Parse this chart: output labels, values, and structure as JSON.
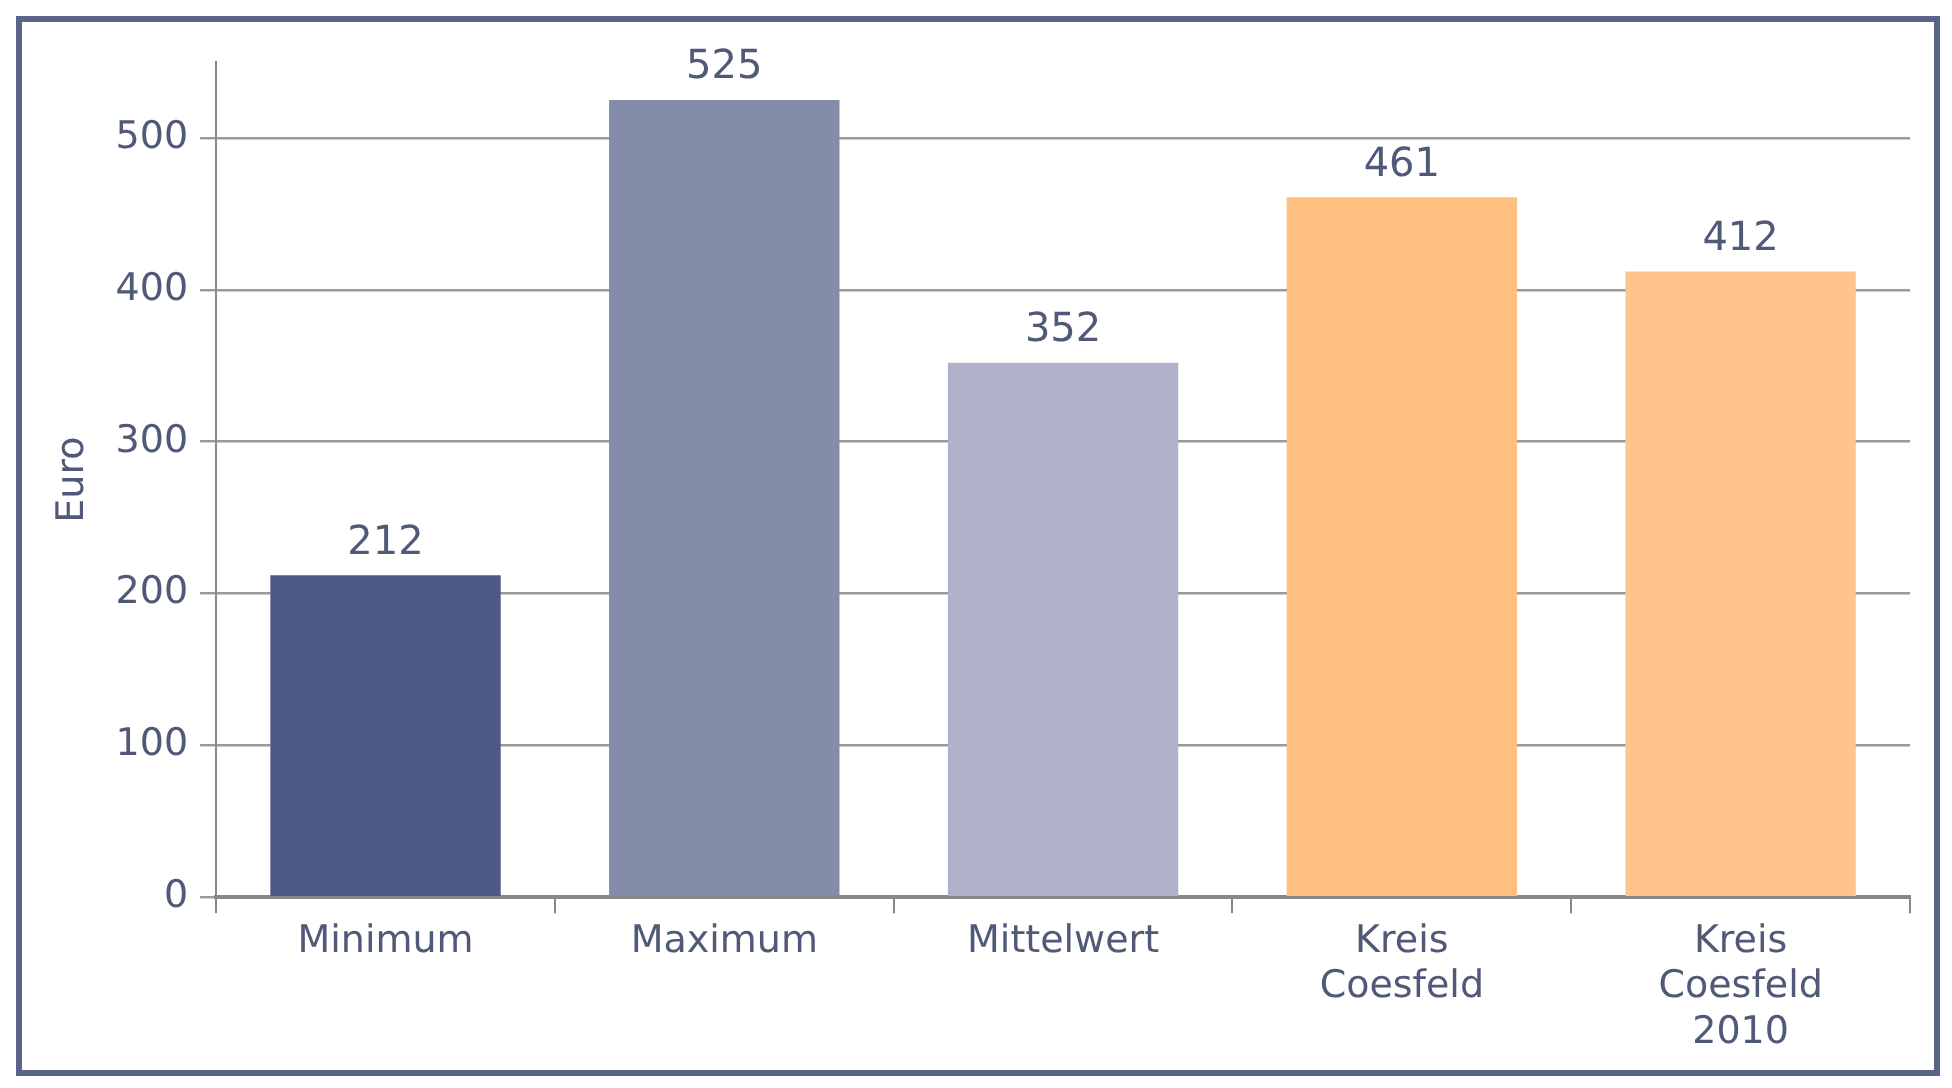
{
  "chart_data": {
    "type": "bar",
    "ylabel": "Euro",
    "categories": [
      "Minimum",
      "Maximum",
      "Mittelwert",
      "Kreis Coesfeld",
      "Kreis Coesfeld 2010"
    ],
    "values": [
      212,
      525,
      352,
      461,
      412
    ],
    "colors": [
      "#4e5a85",
      "#838ca8",
      "#aeb1c8",
      "#ffbf80",
      "#ffc48c"
    ],
    "ylim": [
      0,
      550
    ],
    "yticks": [
      0,
      100,
      200,
      300,
      400,
      500
    ],
    "grid": "y",
    "data_labels": true,
    "legend": false
  }
}
